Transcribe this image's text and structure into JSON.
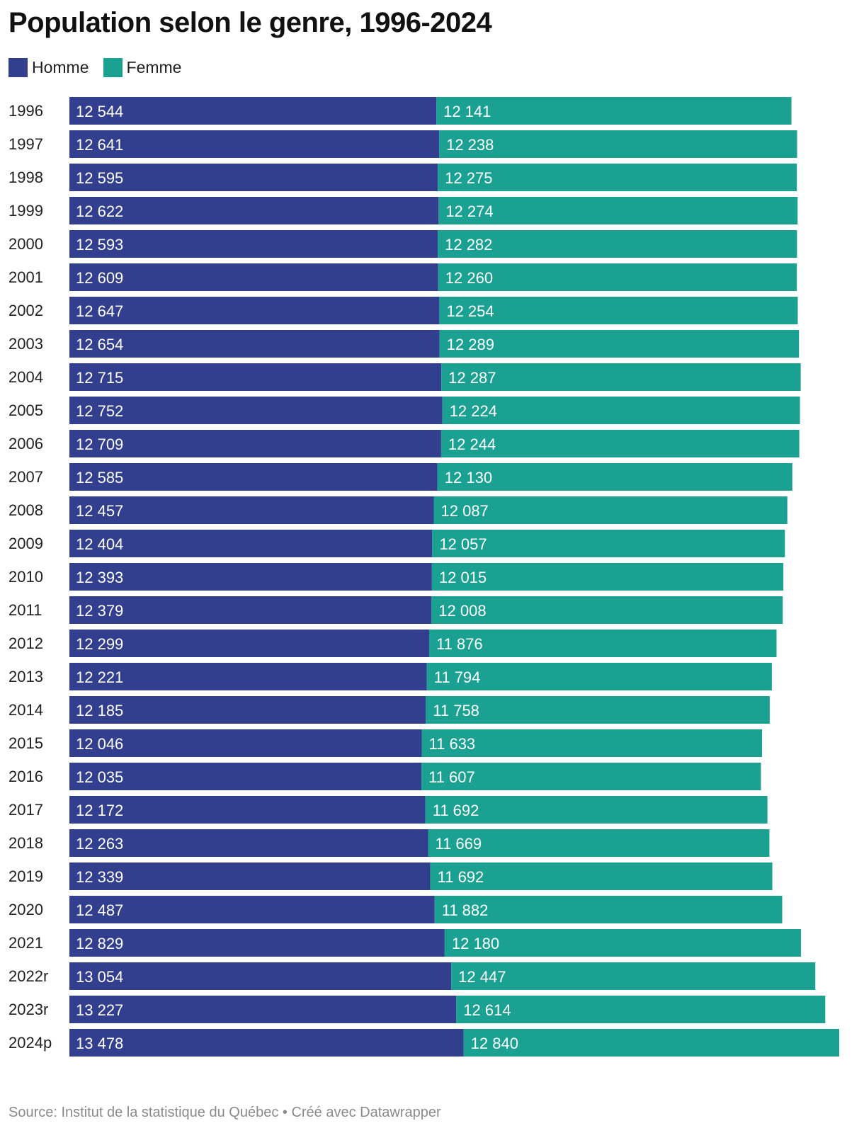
{
  "title": "Population selon le genre, 1996-2024",
  "source": "Source: Institut de la statistique du Québec • Créé avec Datawrapper",
  "colors": {
    "homme": "#323f8f",
    "femme": "#1aa192"
  },
  "chart_data": {
    "type": "bar",
    "orientation": "horizontal",
    "stacked": true,
    "title": "Population selon le genre, 1996-2024",
    "legend_position": "top-left",
    "categories": [
      "1996",
      "1997",
      "1998",
      "1999",
      "2000",
      "2001",
      "2002",
      "2003",
      "2004",
      "2005",
      "2006",
      "2007",
      "2008",
      "2009",
      "2010",
      "2011",
      "2012",
      "2013",
      "2014",
      "2015",
      "2016",
      "2017",
      "2018",
      "2019",
      "2020",
      "2021",
      "2022r",
      "2023r",
      "2024p"
    ],
    "series": [
      {
        "name": "Homme",
        "color": "#323f8f",
        "values": [
          12544,
          12641,
          12595,
          12622,
          12593,
          12609,
          12647,
          12654,
          12715,
          12752,
          12709,
          12585,
          12457,
          12404,
          12393,
          12379,
          12299,
          12221,
          12185,
          12046,
          12035,
          12172,
          12263,
          12339,
          12487,
          12829,
          13054,
          13227,
          13478
        ],
        "labels": [
          "12 544",
          "12 641",
          "12 595",
          "12 622",
          "12 593",
          "12 609",
          "12 647",
          "12 654",
          "12 715",
          "12 752",
          "12 709",
          "12 585",
          "12 457",
          "12 404",
          "12 393",
          "12 379",
          "12 299",
          "12 221",
          "12 185",
          "12 046",
          "12 035",
          "12 172",
          "12 263",
          "12 339",
          "12 487",
          "12 829",
          "13 054",
          "13 227",
          "13 478"
        ]
      },
      {
        "name": "Femme",
        "color": "#1aa192",
        "values": [
          12141,
          12238,
          12275,
          12274,
          12282,
          12260,
          12254,
          12289,
          12287,
          12224,
          12244,
          12130,
          12087,
          12057,
          12015,
          12008,
          11876,
          11794,
          11758,
          11633,
          11607,
          11692,
          11669,
          11692,
          11882,
          12180,
          12447,
          12614,
          12840
        ],
        "labels": [
          "12 141",
          "12 238",
          "12 275",
          "12 274",
          "12 282",
          "12 260",
          "12 254",
          "12 289",
          "12 287",
          "12 224",
          "12 244",
          "12 130",
          "12 087",
          "12 057",
          "12 015",
          "12 008",
          "11 876",
          "11 794",
          "11 758",
          "11 633",
          "11 607",
          "11 692",
          "11 669",
          "11 692",
          "11 882",
          "12 180",
          "12 447",
          "12 614",
          "12 840"
        ]
      }
    ]
  }
}
